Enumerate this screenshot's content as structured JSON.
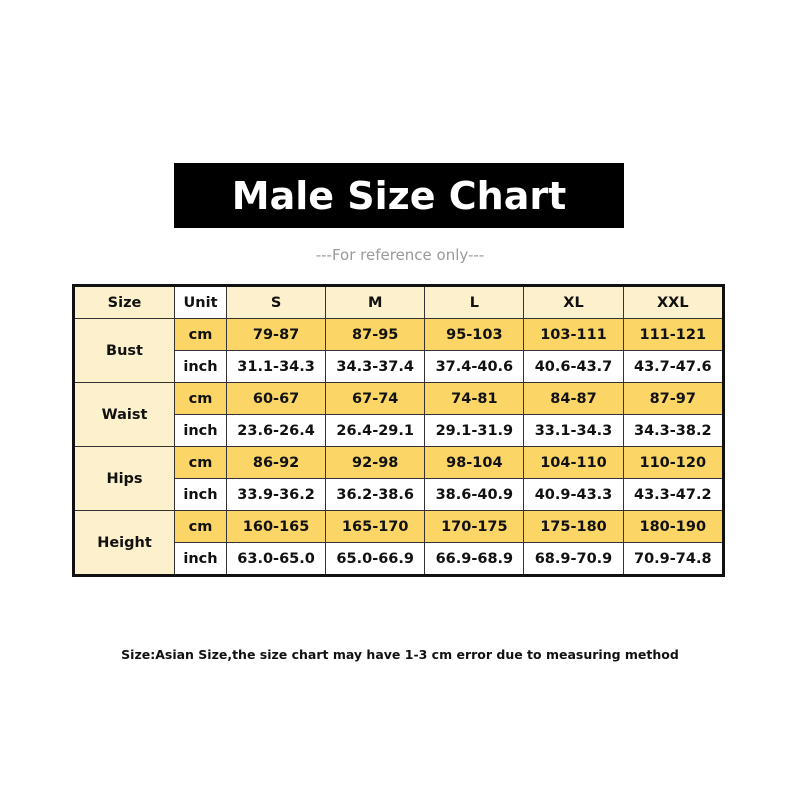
{
  "title": "Male Size Chart",
  "subtitle": "---For reference only---",
  "table": {
    "headers": [
      "Size",
      "Unit",
      "S",
      "M",
      "L",
      "XL",
      "XXL"
    ],
    "rows": [
      {
        "measure": "Bust",
        "cm": [
          "79-87",
          "87-95",
          "95-103",
          "103-111",
          "111-121"
        ],
        "inch": [
          "31.1-34.3",
          "34.3-37.4",
          "37.4-40.6",
          "40.6-43.7",
          "43.7-47.6"
        ]
      },
      {
        "measure": "Waist",
        "cm": [
          "60-67",
          "67-74",
          "74-81",
          "84-87",
          "87-97"
        ],
        "inch": [
          "23.6-26.4",
          "26.4-29.1",
          "29.1-31.9",
          "33.1-34.3",
          "34.3-38.2"
        ]
      },
      {
        "measure": "Hips",
        "cm": [
          "86-92",
          "92-98",
          "98-104",
          "104-110",
          "110-120"
        ],
        "inch": [
          "33.9-36.2",
          "36.2-38.6",
          "38.6-40.9",
          "40.9-43.3",
          "43.3-47.2"
        ]
      },
      {
        "measure": "Height",
        "cm": [
          "160-165",
          "165-170",
          "170-175",
          "175-180",
          "180-190"
        ],
        "inch": [
          "63.0-65.0",
          "65.0-66.9",
          "66.9-68.9",
          "68.9-70.9",
          "70.9-74.8"
        ]
      }
    ],
    "unit_cm": "cm",
    "unit_inch": "inch"
  },
  "footnote": "Size:Asian Size,the size chart may have 1-3 cm error due to measuring method",
  "colors": {
    "title_bg": "#000000",
    "header_bg": "#fdf0cc",
    "cm_row_bg": "#fbd666",
    "inch_row_bg": "#ffffff"
  }
}
